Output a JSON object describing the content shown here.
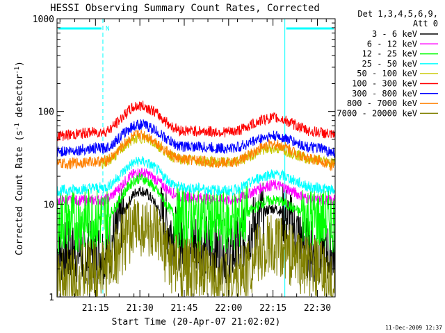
{
  "chart_data": {
    "type": "line",
    "title": "HESSI Observing Summary Count Rates, Corrected",
    "xlabel": "Start Time (20-Apr-07 21:02:02)",
    "ylabel_main": "Corrected Count Rate (s",
    "ylabel_sup1": "-1",
    "ylabel_mid": " detector",
    "ylabel_sup2": "-1",
    "ylabel_end": ")",
    "yscale": "log",
    "ylim": [
      1,
      1000
    ],
    "xlim_minutes": [
      0,
      94
    ],
    "x_ticks": [
      "21:15",
      "21:30",
      "21:45",
      "22:00",
      "22:15",
      "22:30"
    ],
    "x_tick_minutes": [
      13,
      28,
      43,
      58,
      73,
      88
    ],
    "y_ticks": [
      "1",
      "10",
      "100",
      "1000"
    ],
    "y_tick_values": [
      1,
      10,
      100,
      1000
    ],
    "legend_header": [
      "Det 1,3,4,5,6,9,",
      "Att 0"
    ],
    "legend_position": "right",
    "footer_date": "11-Dec-2009 12:37",
    "attenuator_marker": "N",
    "night_intervals_minutes": [
      [
        0,
        15.5
      ],
      [
        77,
        94
      ]
    ],
    "series": [
      {
        "name": "3 - 6 keV",
        "color": "#000000",
        "minutes": [
          0,
          15,
          28,
          43,
          58,
          73,
          88,
          94
        ],
        "values": [
          3,
          3,
          14,
          4,
          3,
          9,
          3,
          3
        ]
      },
      {
        "name": "6 - 12 keV",
        "color": "#ff00ff",
        "minutes": [
          0,
          15,
          28,
          43,
          58,
          73,
          88,
          94
        ],
        "values": [
          11,
          11,
          22,
          12,
          11,
          16,
          11,
          11
        ]
      },
      {
        "name": "12 - 25 keV",
        "color": "#00ff00",
        "minutes": [
          0,
          15,
          28,
          43,
          58,
          73,
          88,
          94
        ],
        "values": [
          6.5,
          7,
          19,
          7,
          6.5,
          11,
          7,
          6.5
        ]
      },
      {
        "name": "25 - 50 keV",
        "color": "#00ffff",
        "minutes": [
          0,
          15,
          28,
          43,
          58,
          73,
          88,
          94
        ],
        "values": [
          14,
          15,
          29,
          15,
          14,
          21,
          15,
          14
        ]
      },
      {
        "name": "50 - 100 keV",
        "color": "#c8c800",
        "minutes": [
          15,
          28,
          43,
          58,
          73,
          88,
          94
        ],
        "values": [
          28,
          52,
          30,
          28,
          40,
          30,
          28
        ]
      },
      {
        "name": "100 - 300 keV",
        "color": "#ff0000",
        "minutes": [
          0,
          15,
          28,
          43,
          58,
          73,
          88,
          94
        ],
        "values": [
          55,
          60,
          115,
          62,
          60,
          85,
          60,
          55
        ]
      },
      {
        "name": "300 - 800 keV",
        "color": "#0000ff",
        "minutes": [
          0,
          15,
          28,
          43,
          58,
          73,
          88,
          94
        ],
        "values": [
          37,
          40,
          72,
          42,
          40,
          54,
          40,
          36
        ]
      },
      {
        "name": "800 - 7000 keV",
        "color": "#ff8000",
        "minutes": [
          0,
          15,
          28,
          43,
          58,
          73,
          88,
          94
        ],
        "values": [
          27,
          29,
          56,
          30,
          28,
          44,
          30,
          26
        ]
      },
      {
        "name": "7000 - 20000 keV",
        "color": "#808000",
        "minutes": [
          0,
          15,
          28,
          43,
          58,
          73,
          88,
          94
        ],
        "values": [
          1.5,
          2,
          6,
          2,
          1.5,
          3.5,
          2,
          1.2
        ]
      }
    ]
  }
}
